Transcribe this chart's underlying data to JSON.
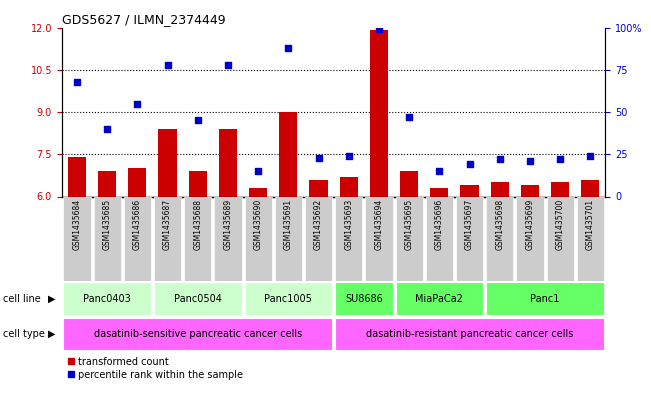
{
  "title": "GDS5627 / ILMN_2374449",
  "samples": [
    "GSM1435684",
    "GSM1435685",
    "GSM1435686",
    "GSM1435687",
    "GSM1435688",
    "GSM1435689",
    "GSM1435690",
    "GSM1435691",
    "GSM1435692",
    "GSM1435693",
    "GSM1435694",
    "GSM1435695",
    "GSM1435696",
    "GSM1435697",
    "GSM1435698",
    "GSM1435699",
    "GSM1435700",
    "GSM1435701"
  ],
  "bar_values": [
    7.4,
    6.9,
    7.0,
    8.4,
    6.9,
    8.4,
    6.3,
    9.0,
    6.6,
    6.7,
    11.9,
    6.9,
    6.3,
    6.4,
    6.5,
    6.4,
    6.5,
    6.6
  ],
  "dot_values": [
    68,
    40,
    55,
    78,
    45,
    78,
    15,
    88,
    23,
    24,
    99,
    47,
    15,
    19,
    22,
    21,
    22,
    24
  ],
  "ylim_left": [
    6,
    12
  ],
  "ylim_right": [
    0,
    100
  ],
  "yticks_left": [
    6,
    7.5,
    9,
    10.5,
    12
  ],
  "yticks_right": [
    0,
    25,
    50,
    75,
    100
  ],
  "bar_color": "#cc0000",
  "dot_color": "#0000cc",
  "cell_lines": [
    {
      "label": "Panc0403",
      "start": 0,
      "end": 2,
      "color": "#ccffcc"
    },
    {
      "label": "Panc0504",
      "start": 3,
      "end": 5,
      "color": "#ccffcc"
    },
    {
      "label": "Panc1005",
      "start": 6,
      "end": 8,
      "color": "#ccffcc"
    },
    {
      "label": "SU8686",
      "start": 9,
      "end": 10,
      "color": "#66ff66"
    },
    {
      "label": "MiaPaCa2",
      "start": 11,
      "end": 13,
      "color": "#66ff66"
    },
    {
      "label": "Panc1",
      "start": 14,
      "end": 17,
      "color": "#66ff66"
    }
  ],
  "cell_types": [
    {
      "label": "dasatinib-sensitive pancreatic cancer cells",
      "start": 0,
      "end": 8,
      "color": "#ff66ff"
    },
    {
      "label": "dasatinib-resistant pancreatic cancer cells",
      "start": 9,
      "end": 17,
      "color": "#ff66ff"
    }
  ],
  "legend_items": [
    {
      "label": "transformed count",
      "color": "#cc0000"
    },
    {
      "label": "percentile rank within the sample",
      "color": "#0000cc"
    }
  ],
  "xlabel_color": "#cc0000",
  "ylabel_right_color": "#0000cc",
  "dotted_line_color": "#555555",
  "bg_color": "#ffffff",
  "sample_bg_color": "#cccccc"
}
